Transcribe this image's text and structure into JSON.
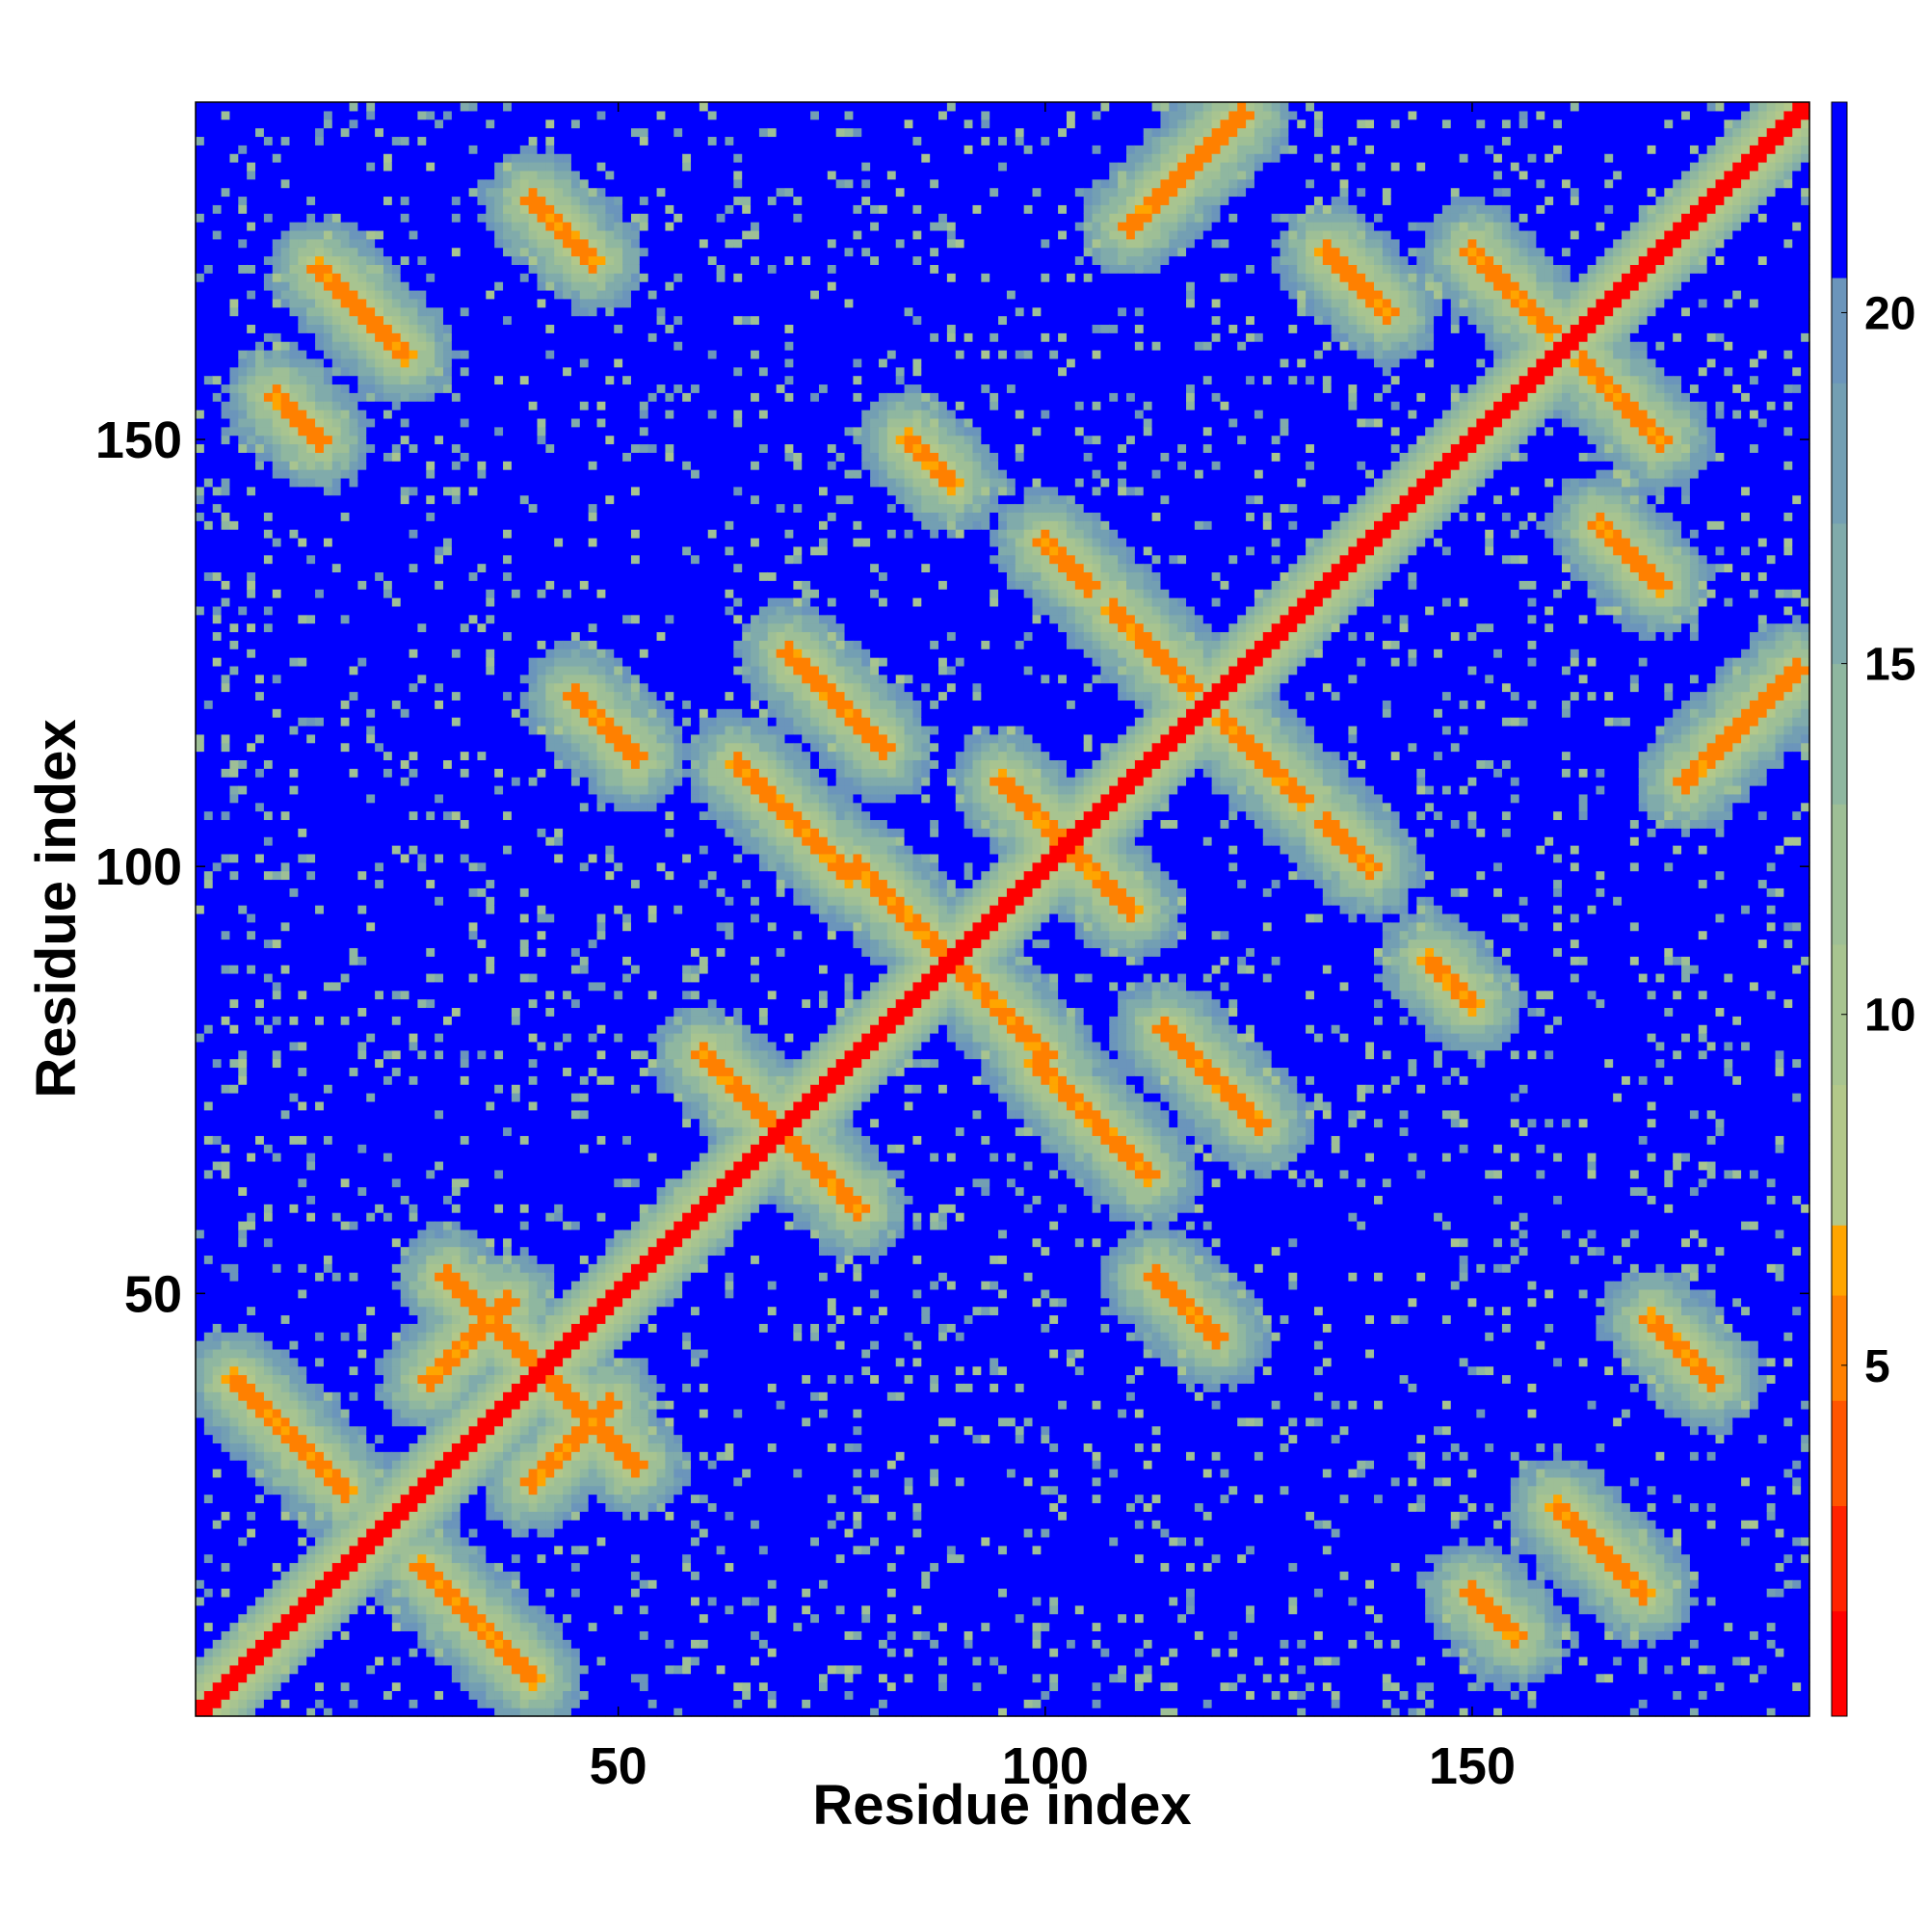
{
  "chart_data": {
    "type": "heatmap",
    "title": "",
    "xlabel": "Residue index",
    "ylabel": "Residue index",
    "n_residues": 189,
    "xlim": [
      1,
      189
    ],
    "ylim": [
      1,
      189
    ],
    "x_ticks": [
      50,
      100,
      150
    ],
    "y_ticks": [
      50,
      100,
      150
    ],
    "colorbar": {
      "ticks": [
        5,
        10,
        15,
        20
      ],
      "range": [
        0,
        23
      ],
      "levels": [
        {
          "max": 1.5,
          "color": "#ff0000"
        },
        {
          "max": 3.0,
          "color": "#ff2200"
        },
        {
          "max": 4.5,
          "color": "#ff5500"
        },
        {
          "max": 6.0,
          "color": "#ff8000"
        },
        {
          "max": 7.0,
          "color": "#ffa500"
        },
        {
          "max": 9.0,
          "color": "#b3c88a"
        },
        {
          "max": 11.0,
          "color": "#a8c490"
        },
        {
          "max": 13.0,
          "color": "#9ebf96"
        },
        {
          "max": 15.0,
          "color": "#8fb7a0"
        },
        {
          "max": 17.0,
          "color": "#80abab"
        },
        {
          "max": 19.0,
          "color": "#739fb3"
        },
        {
          "max": 20.5,
          "color": "#6b95bb"
        },
        {
          "max": 23.0,
          "color": "#0000ff"
        }
      ]
    },
    "cap_value": 23,
    "cap_color": "#0000ff",
    "contact_bands": [
      {
        "i": 28,
        "j": 40,
        "len": 10,
        "dir": "parallel"
      },
      {
        "i": 5,
        "j": 40,
        "len": 14,
        "dir": "anti"
      },
      {
        "i": 30,
        "j": 52,
        "len": 12,
        "dir": "anti"
      },
      {
        "i": 60,
        "j": 78,
        "len": 14,
        "dir": "anti"
      },
      {
        "i": 78,
        "j": 100,
        "len": 12,
        "dir": "anti"
      },
      {
        "i": 95,
        "j": 110,
        "len": 10,
        "dir": "anti"
      },
      {
        "i": 64,
        "j": 112,
        "len": 14,
        "dir": "anti"
      },
      {
        "i": 70,
        "j": 125,
        "len": 12,
        "dir": "anti"
      },
      {
        "i": 108,
        "j": 130,
        "len": 10,
        "dir": "anti"
      },
      {
        "i": 110,
        "j": 175,
        "len": 14,
        "dir": "parallel"
      },
      {
        "i": 45,
        "j": 120,
        "len": 8,
        "dir": "anti"
      },
      {
        "i": 150,
        "j": 172,
        "len": 10,
        "dir": "anti"
      },
      {
        "i": 165,
        "j": 140,
        "len": 8,
        "dir": "anti"
      },
      {
        "i": 84,
        "j": 150,
        "len": 6,
        "dir": "anti"
      },
      {
        "i": 100,
        "j": 138,
        "len": 6,
        "dir": "anti"
      },
      {
        "i": 15,
        "j": 170,
        "len": 10,
        "dir": "anti"
      },
      {
        "i": 40,
        "j": 178,
        "len": 8,
        "dir": "anti"
      },
      {
        "i": 160,
        "j": 25,
        "len": 8,
        "dir": "anti"
      },
      {
        "i": 150,
        "j": 15,
        "len": 6,
        "dir": "anti"
      }
    ]
  }
}
